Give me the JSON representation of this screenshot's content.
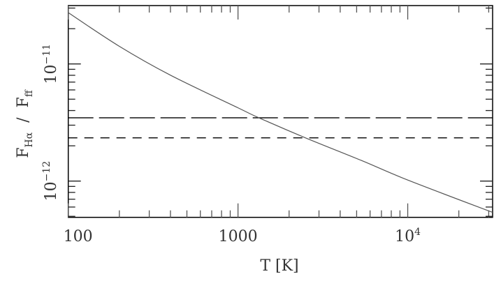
{
  "chart_data": {
    "type": "line",
    "title": "",
    "xlabel": "T [K]",
    "ylabel": {
      "base": "F",
      "num_sub": "Hα",
      "sep": "/",
      "den_sub": "ff"
    },
    "x_scale": "log",
    "y_scale": "log",
    "xlim": [
      100,
      31623
    ],
    "ylim": [
      4.9e-13,
      3.15e-11
    ],
    "grid": false,
    "legend": "none",
    "x_ticks": [
      {
        "value": 100,
        "label": "100"
      },
      {
        "value": 1000,
        "label": "1000"
      },
      {
        "value": 10000,
        "label": "10",
        "sup": "4"
      }
    ],
    "y_ticks": [
      {
        "value": 1e-11,
        "label": "10",
        "sup": "−11"
      },
      {
        "value": 1e-12,
        "label": "10",
        "sup": "−12"
      }
    ],
    "series": [
      {
        "style": "solid",
        "color": "#555555",
        "x": [
          100,
          199,
          399,
          1000,
          1327,
          2495,
          5330,
          10000,
          31600
        ],
        "y": [
          2.74e-11,
          1.42e-11,
          8.03e-12,
          4.22e-12,
          3.47e-12,
          2.34e-12,
          1.5e-12,
          1.02e-12,
          5.4e-13
        ]
      }
    ],
    "hlines": [
      {
        "y": 3.47e-12,
        "style": "long-dash",
        "color": "#000000"
      },
      {
        "y": 2.34e-12,
        "style": "short-dash",
        "color": "#000000"
      }
    ]
  }
}
